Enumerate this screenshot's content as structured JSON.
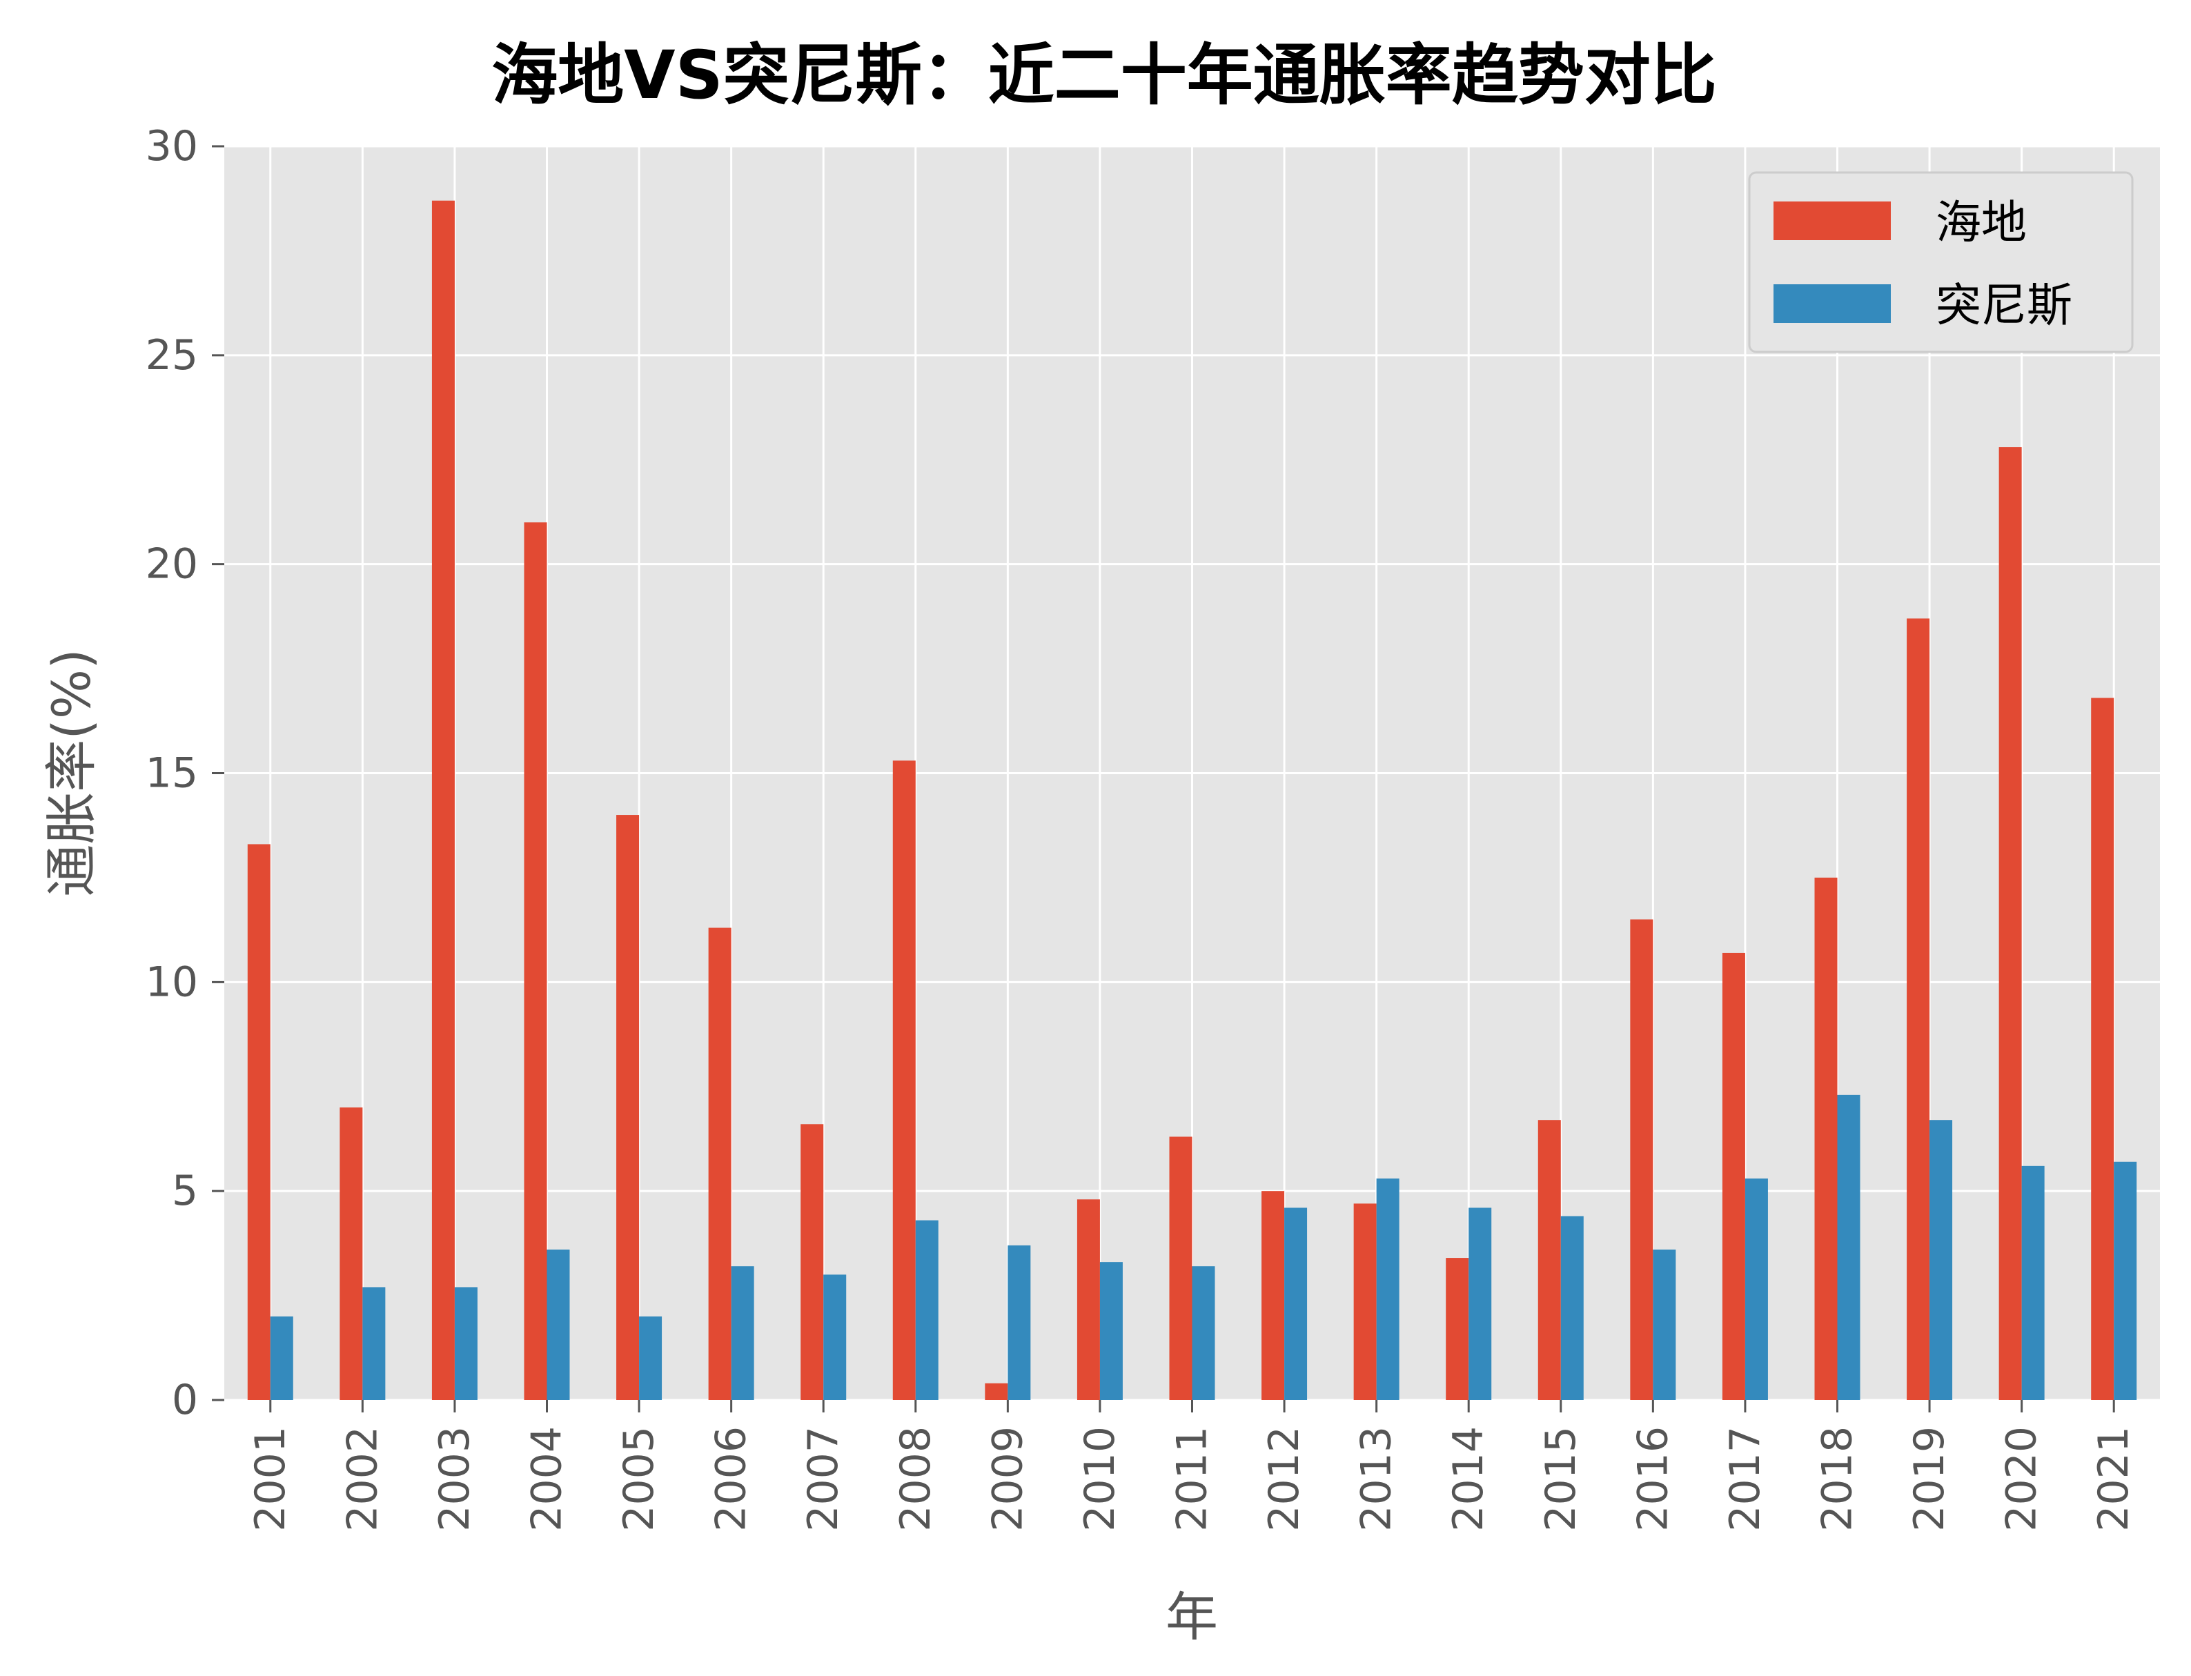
{
  "chart_data": {
    "type": "bar",
    "title": "海地VS突尼斯：近二十年通胀率趋势对比",
    "xlabel": "年",
    "ylabel": "通胀率(%)",
    "categories": [
      "2001",
      "2002",
      "2003",
      "2004",
      "2005",
      "2006",
      "2007",
      "2008",
      "2009",
      "2010",
      "2011",
      "2012",
      "2013",
      "2014",
      "2015",
      "2016",
      "2017",
      "2018",
      "2019",
      "2020",
      "2021"
    ],
    "series": [
      {
        "name": "海地",
        "color": "#E24A33",
        "values": [
          13.3,
          7.0,
          28.7,
          21.0,
          14.0,
          11.3,
          6.6,
          15.3,
          0.4,
          4.8,
          6.3,
          5.0,
          4.7,
          3.4,
          6.7,
          11.5,
          10.7,
          12.5,
          18.7,
          22.8,
          16.8
        ]
      },
      {
        "name": "突尼斯",
        "color": "#348ABD",
        "values": [
          2.0,
          2.7,
          2.7,
          3.6,
          2.0,
          3.2,
          3.0,
          4.3,
          3.7,
          3.3,
          3.2,
          4.6,
          5.3,
          4.6,
          4.4,
          3.6,
          5.3,
          7.3,
          6.7,
          5.6,
          5.7
        ]
      }
    ],
    "ylim": [
      0,
      30
    ],
    "yticks": [
      "0",
      "5",
      "10",
      "15",
      "20",
      "25",
      "30"
    ],
    "grid": true,
    "legend": "top-right",
    "background": "#E5E5E5"
  }
}
